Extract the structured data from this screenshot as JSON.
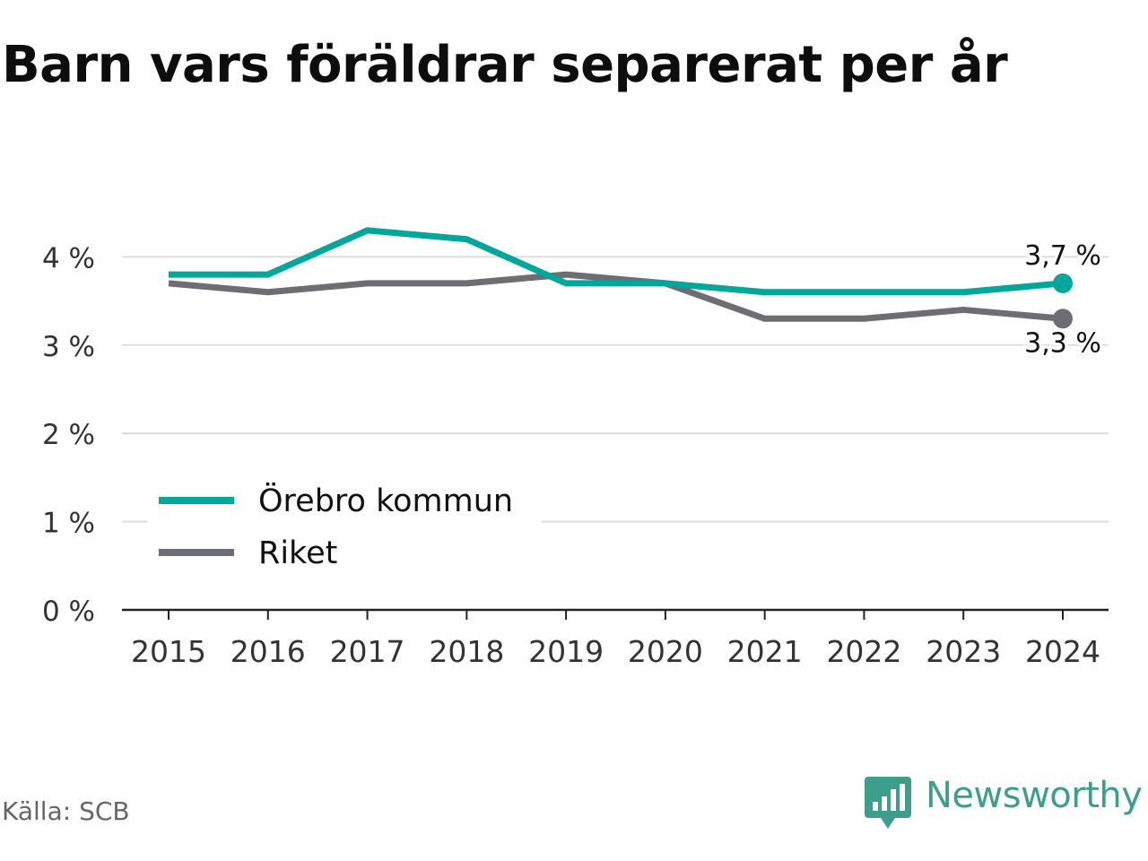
{
  "title": "Barn vars föräldrar separerat per år",
  "source": "Källa: SCB",
  "brand": {
    "name": "Newsworthy",
    "icon": "newsworthy-logo-icon",
    "color": "#3e9e8c"
  },
  "chart_data": {
    "type": "line",
    "title": "Barn vars föräldrar separerat per år",
    "x": [
      "2015",
      "2016",
      "2017",
      "2018",
      "2019",
      "2020",
      "2021",
      "2022",
      "2023",
      "2024"
    ],
    "ylim": [
      0,
      5
    ],
    "y_ticks": [
      0,
      1,
      2,
      3,
      4
    ],
    "y_tick_labels": [
      "0 %",
      "1 %",
      "2 %",
      "3 %",
      "4 %"
    ],
    "grid": true,
    "legend_position": "bottom-left",
    "series": [
      {
        "name": "Örebro kommun",
        "color": "#00a79a",
        "values": [
          3.8,
          3.8,
          4.3,
          4.2,
          3.7,
          3.7,
          3.6,
          3.6,
          3.6,
          3.7
        ],
        "end_label": "3,7 %"
      },
      {
        "name": "Riket",
        "color": "#6d6d74",
        "values": [
          3.7,
          3.6,
          3.7,
          3.7,
          3.8,
          3.7,
          3.3,
          3.3,
          3.4,
          3.3
        ],
        "end_label": "3,3 %"
      }
    ]
  }
}
